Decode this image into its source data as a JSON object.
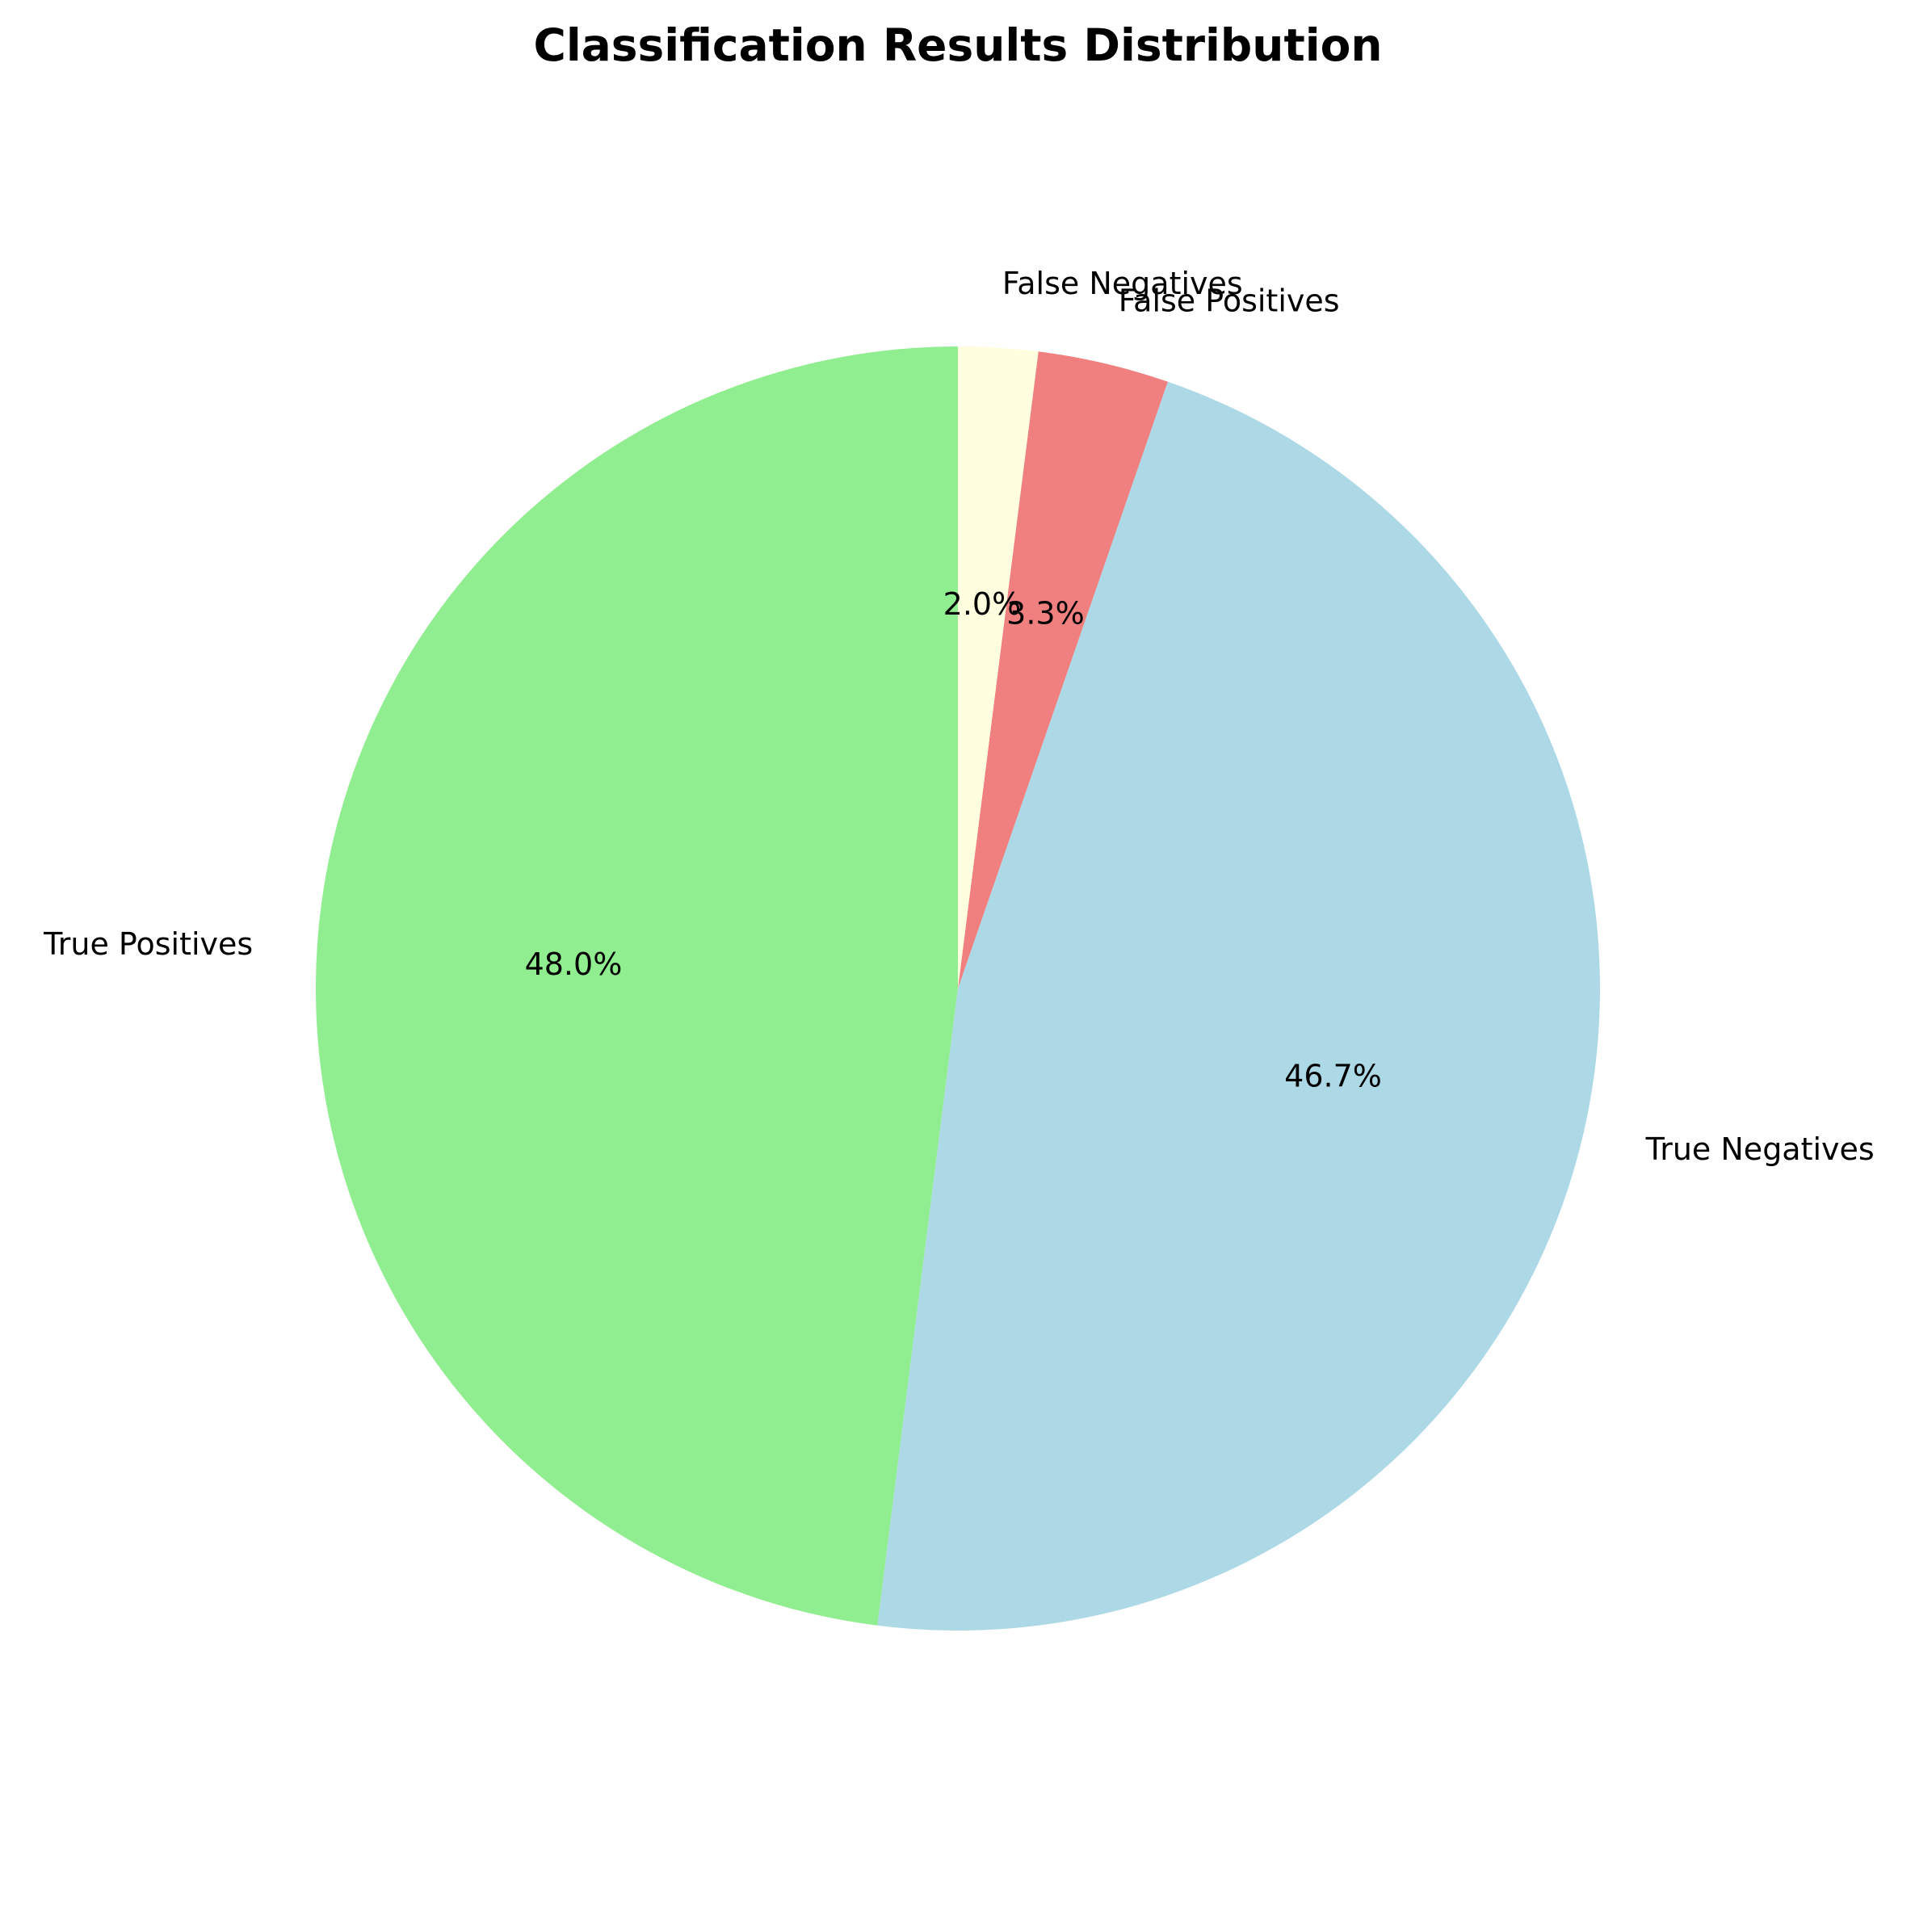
{
  "chart_data": {
    "type": "pie",
    "title": "Classification Results Distribution",
    "start_angle": 90,
    "direction": "counterclockwise",
    "slices": [
      {
        "label": "True Positives",
        "value": 48.0,
        "pct_label": "48.0%",
        "color": "#90ee90"
      },
      {
        "label": "True Negatives",
        "value": 46.7,
        "pct_label": "46.7%",
        "color": "#add8e6"
      },
      {
        "label": "False Positives",
        "value": 3.3,
        "pct_label": "3.3%",
        "color": "#f08080"
      },
      {
        "label": "False Negatives",
        "value": 2.0,
        "pct_label": "2.0%",
        "color": "#ffffe0"
      }
    ]
  }
}
